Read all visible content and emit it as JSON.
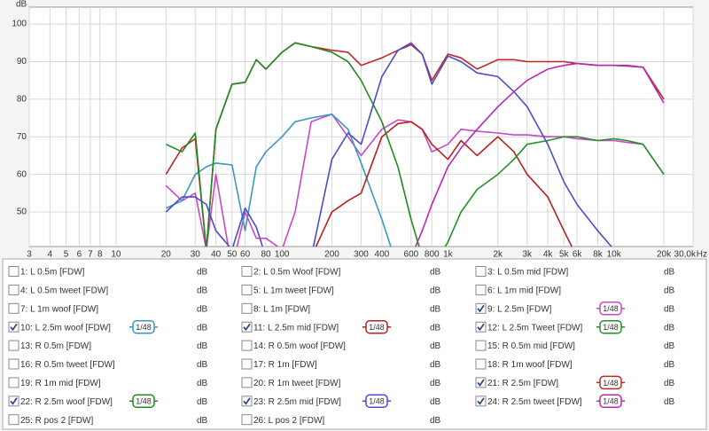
{
  "chart_data": {
    "type": "line",
    "y_label": "dB",
    "x_label": "Hz",
    "log_x": true,
    "grid": true,
    "xlim": [
      3,
      30000
    ],
    "ylim": [
      40.8,
      104.5
    ],
    "yticks": [
      50,
      60,
      70,
      80,
      90,
      100
    ],
    "xticks": [
      3,
      4,
      5,
      6,
      7,
      8,
      10,
      20,
      30,
      40,
      50,
      60,
      80,
      100,
      200,
      300,
      400,
      600,
      800,
      {
        "value": 1000,
        "label": "1k"
      },
      {
        "value": 2000,
        "label": "2k"
      },
      {
        "value": 3000,
        "label": "3k"
      },
      {
        "value": 4000,
        "label": "4k"
      },
      {
        "value": 5000,
        "label": "5k"
      },
      {
        "value": 6000,
        "label": "6k"
      },
      {
        "value": 8000,
        "label": "8k"
      },
      {
        "value": 10000,
        "label": "10k"
      },
      {
        "value": 20000,
        "label": "20k"
      },
      {
        "value": 30000,
        "label": "30,0k"
      }
    ],
    "x": [
      20,
      25,
      30,
      35,
      40,
      50,
      60,
      70,
      80,
      100,
      120,
      150,
      200,
      250,
      300,
      400,
      500,
      600,
      700,
      800,
      1000,
      1200,
      1500,
      2000,
      2500,
      3000,
      4000,
      5000,
      6000,
      8000,
      10000,
      12000,
      15000,
      20000
    ],
    "series": [
      {
        "name": "1: L 0.5m [FDW]",
        "color": "#c02020",
        "unit": "dB",
        "checked": false
      },
      {
        "name": "2: L 0.5m Woof [FDW]",
        "color": "#20a020",
        "unit": "dB",
        "checked": false
      },
      {
        "name": "3: L 0.5m mid [FDW]",
        "color": "#4848c0",
        "unit": "dB",
        "checked": false
      },
      {
        "name": "4: L 0.5m tweet [FDW]",
        "color": "#b020b0",
        "unit": "dB",
        "checked": false
      },
      {
        "name": "5: L 1m tweet [FDW]",
        "color": "#2890b0",
        "unit": "dB",
        "checked": false
      },
      {
        "name": "6: L 1m mid [FDW]",
        "color": "#c09020",
        "unit": "dB",
        "checked": false
      },
      {
        "name": "7: L 1m woof [FDW]",
        "color": "#20a020",
        "unit": "dB",
        "checked": false
      },
      {
        "name": "8: L 1m [FDW]",
        "color": "#9040c0",
        "unit": "dB",
        "checked": false
      },
      {
        "name": "9: L  2.5m [FDW]",
        "color": "#c848c8",
        "unit": "dB",
        "checked": true,
        "smoothing": "1/48",
        "values": [
          57,
          53,
          55,
          40,
          60,
          35,
          50,
          43,
          43,
          40,
          50,
          74,
          76,
          70,
          65,
          72,
          74.5,
          74,
          72,
          66,
          68,
          72,
          71.5,
          71,
          70.5,
          70.5,
          70,
          70,
          69.5,
          69,
          69,
          68.5,
          68,
          60
        ]
      },
      {
        "name": "10: L 2.5m woof [FDW]",
        "color": "#3898c0",
        "unit": "dB",
        "checked": true,
        "smoothing": "1/48",
        "values": [
          51,
          53,
          60,
          62,
          63,
          62.5,
          45,
          62,
          66,
          70,
          74,
          75,
          76,
          72,
          63,
          48,
          35,
          null,
          null,
          null,
          null,
          null,
          null,
          null,
          null,
          null,
          null,
          null,
          null,
          null,
          null,
          null,
          null,
          null
        ]
      },
      {
        "name": "11: L 2.5m mid [FDW]",
        "color": "#b82020",
        "unit": "dB",
        "checked": true,
        "smoothing": "1/48",
        "values": [
          null,
          null,
          null,
          null,
          null,
          null,
          null,
          null,
          null,
          null,
          null,
          38,
          50,
          53,
          55,
          70,
          73.5,
          74,
          72,
          68,
          64,
          69,
          65,
          70,
          66,
          60,
          54,
          45,
          38,
          null,
          null,
          null,
          null,
          null
        ]
      },
      {
        "name": "12: L 2.5m Tweet [FDW]",
        "color": "#22922a",
        "unit": "dB",
        "checked": true,
        "smoothing": "1/48",
        "values": [
          null,
          null,
          null,
          null,
          null,
          null,
          null,
          null,
          null,
          null,
          null,
          null,
          null,
          null,
          null,
          null,
          null,
          null,
          null,
          35,
          42,
          50,
          56,
          60,
          64,
          68,
          69,
          70,
          70,
          69,
          69.5,
          69,
          68,
          60
        ]
      },
      {
        "name": "13: R 0.5m [FDW]",
        "color": "#4848c0",
        "unit": "dB",
        "checked": false
      },
      {
        "name": "14: R 0.5m woof [FDW]",
        "color": "#c02020",
        "unit": "dB",
        "checked": false
      },
      {
        "name": "15: R 0.5m mid [FDW]",
        "color": "#2890b0",
        "unit": "dB",
        "checked": false
      },
      {
        "name": "16: R 0.5m tweet [FDW]",
        "color": "#c09020",
        "unit": "dB",
        "checked": false
      },
      {
        "name": "17: R 1m [FDW]",
        "color": "#20a020",
        "unit": "dB",
        "checked": false
      },
      {
        "name": "18: R 1m woof [FDW]",
        "color": "#9040c0",
        "unit": "dB",
        "checked": false
      },
      {
        "name": "19: R 1m mid [FDW]",
        "color": "#b020b0",
        "unit": "dB",
        "checked": false
      },
      {
        "name": "20: R 1m tweet [FDW]",
        "color": "#2890b0",
        "unit": "dB",
        "checked": false
      },
      {
        "name": "21: R 2.5m [FDW]",
        "color": "#c02828",
        "unit": "dB",
        "checked": true,
        "smoothing": "1/48",
        "values": [
          60,
          67,
          69.5,
          40,
          72,
          84,
          84.5,
          90.5,
          88,
          92.5,
          95,
          94,
          93,
          92.5,
          89,
          91,
          93,
          94.5,
          92,
          85,
          92,
          91,
          88,
          90.5,
          90.5,
          90,
          90,
          90,
          89.5,
          89,
          89,
          88.8,
          88.5,
          80
        ]
      },
      {
        "name": "22: R 2.5m woof [FDW]",
        "color": "#228a22",
        "unit": "dB",
        "checked": true,
        "smoothing": "1/48",
        "values": [
          68,
          66,
          71,
          40,
          72,
          84,
          84.5,
          90.5,
          88,
          92.5,
          95,
          94,
          92.5,
          90,
          85,
          74,
          62,
          48,
          38,
          30,
          null,
          null,
          null,
          null,
          null,
          null,
          null,
          null,
          null,
          null,
          null,
          null,
          null,
          null
        ]
      },
      {
        "name": "23: R 2.5m mid [FDW]",
        "color": "#4c4cc8",
        "unit": "dB",
        "checked": true,
        "smoothing": "1/48",
        "values": [
          50,
          54,
          54,
          52,
          45,
          40,
          51,
          46,
          38,
          null,
          null,
          38,
          64,
          71,
          68,
          86,
          93,
          95,
          92,
          84,
          91.5,
          90,
          87,
          86,
          82,
          78,
          68,
          58,
          52,
          45,
          40,
          35,
          null,
          null
        ]
      },
      {
        "name": "24: R 2.5m tweet [FDW]",
        "color": "#b828b8",
        "unit": "dB",
        "checked": true,
        "smoothing": "1/48",
        "values": [
          null,
          null,
          null,
          null,
          null,
          null,
          null,
          null,
          null,
          null,
          null,
          null,
          null,
          null,
          null,
          null,
          null,
          38,
          45,
          52,
          62,
          67,
          72,
          78,
          82,
          85,
          88,
          89,
          89.5,
          89,
          89,
          89,
          88.5,
          79
        ]
      },
      {
        "name": "25: R pos 2 [FDW]",
        "color": "#2890b0",
        "unit": "dB",
        "checked": false
      },
      {
        "name": "26: L pos 2 [FDW]",
        "color": "#c09020",
        "unit": "dB",
        "checked": false
      }
    ]
  }
}
